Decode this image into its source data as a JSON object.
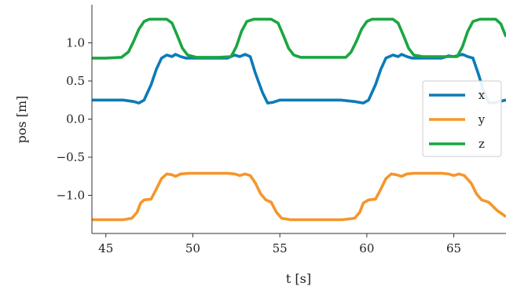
{
  "chart_data": {
    "type": "line",
    "title": "",
    "xlabel": "t [s]",
    "ylabel": "pos [m]",
    "xlim": [
      44.2,
      68.0
    ],
    "ylim": [
      -1.5,
      1.5
    ],
    "x_ticks": [
      45,
      50,
      55,
      60,
      65
    ],
    "x_tick_labels": [
      "45",
      "50",
      "55",
      "60",
      "65"
    ],
    "y_ticks": [
      -1.0,
      -0.5,
      0.0,
      0.5,
      1.0
    ],
    "y_tick_labels": [
      "−1.0",
      "−0.5",
      "0.0",
      "0.5",
      "1.0"
    ],
    "grid": false,
    "legend_position": "right",
    "series": [
      {
        "name": "x",
        "color": "#0c7bb8",
        "points": [
          [
            44.2,
            0.25
          ],
          [
            45.0,
            0.25
          ],
          [
            46.0,
            0.25
          ],
          [
            46.6,
            0.23
          ],
          [
            46.9,
            0.21
          ],
          [
            47.2,
            0.25
          ],
          [
            47.6,
            0.45
          ],
          [
            47.9,
            0.65
          ],
          [
            48.2,
            0.8
          ],
          [
            48.5,
            0.84
          ],
          [
            48.8,
            0.82
          ],
          [
            49.0,
            0.85
          ],
          [
            49.3,
            0.82
          ],
          [
            49.6,
            0.8
          ],
          [
            50.0,
            0.8
          ],
          [
            51.0,
            0.8
          ],
          [
            52.0,
            0.8
          ],
          [
            52.4,
            0.84
          ],
          [
            52.7,
            0.82
          ],
          [
            53.0,
            0.85
          ],
          [
            53.3,
            0.82
          ],
          [
            53.6,
            0.6
          ],
          [
            54.0,
            0.35
          ],
          [
            54.3,
            0.21
          ],
          [
            54.6,
            0.22
          ],
          [
            55.0,
            0.25
          ],
          [
            56.0,
            0.25
          ],
          [
            57.0,
            0.25
          ],
          [
            58.5,
            0.25
          ],
          [
            59.3,
            0.23
          ],
          [
            59.8,
            0.21
          ],
          [
            60.1,
            0.25
          ],
          [
            60.5,
            0.45
          ],
          [
            60.8,
            0.65
          ],
          [
            61.1,
            0.8
          ],
          [
            61.5,
            0.84
          ],
          [
            61.8,
            0.82
          ],
          [
            62.0,
            0.85
          ],
          [
            62.3,
            0.82
          ],
          [
            62.6,
            0.8
          ],
          [
            63.5,
            0.8
          ],
          [
            64.3,
            0.8
          ],
          [
            64.7,
            0.83
          ],
          [
            65.0,
            0.82
          ],
          [
            65.5,
            0.85
          ],
          [
            65.8,
            0.82
          ],
          [
            66.1,
            0.8
          ],
          [
            66.4,
            0.6
          ],
          [
            66.7,
            0.38
          ],
          [
            67.0,
            0.22
          ],
          [
            67.3,
            0.21
          ],
          [
            67.6,
            0.23
          ],
          [
            68.0,
            0.25
          ]
        ]
      },
      {
        "name": "y",
        "color": "#f5962a",
        "points": [
          [
            44.2,
            -1.32
          ],
          [
            45.0,
            -1.32
          ],
          [
            46.0,
            -1.32
          ],
          [
            46.5,
            -1.3
          ],
          [
            46.8,
            -1.22
          ],
          [
            47.0,
            -1.1
          ],
          [
            47.2,
            -1.06
          ],
          [
            47.6,
            -1.05
          ],
          [
            47.9,
            -0.92
          ],
          [
            48.2,
            -0.78
          ],
          [
            48.5,
            -0.72
          ],
          [
            48.8,
            -0.73
          ],
          [
            49.0,
            -0.75
          ],
          [
            49.3,
            -0.72
          ],
          [
            49.8,
            -0.71
          ],
          [
            51.0,
            -0.71
          ],
          [
            52.0,
            -0.71
          ],
          [
            52.4,
            -0.72
          ],
          [
            52.7,
            -0.74
          ],
          [
            53.0,
            -0.72
          ],
          [
            53.3,
            -0.74
          ],
          [
            53.6,
            -0.84
          ],
          [
            53.9,
            -0.98
          ],
          [
            54.2,
            -1.06
          ],
          [
            54.5,
            -1.09
          ],
          [
            54.8,
            -1.22
          ],
          [
            55.1,
            -1.3
          ],
          [
            55.6,
            -1.32
          ],
          [
            57.0,
            -1.32
          ],
          [
            58.6,
            -1.32
          ],
          [
            59.3,
            -1.3
          ],
          [
            59.6,
            -1.22
          ],
          [
            59.8,
            -1.1
          ],
          [
            60.1,
            -1.06
          ],
          [
            60.5,
            -1.05
          ],
          [
            60.8,
            -0.92
          ],
          [
            61.1,
            -0.78
          ],
          [
            61.4,
            -0.72
          ],
          [
            61.7,
            -0.73
          ],
          [
            62.0,
            -0.75
          ],
          [
            62.3,
            -0.72
          ],
          [
            62.7,
            -0.71
          ],
          [
            64.3,
            -0.71
          ],
          [
            64.7,
            -0.72
          ],
          [
            65.0,
            -0.74
          ],
          [
            65.3,
            -0.72
          ],
          [
            65.6,
            -0.74
          ],
          [
            66.0,
            -0.84
          ],
          [
            66.3,
            -0.98
          ],
          [
            66.6,
            -1.06
          ],
          [
            67.0,
            -1.09
          ],
          [
            67.5,
            -1.2
          ],
          [
            68.0,
            -1.28
          ]
        ]
      },
      {
        "name": "z",
        "color": "#1aa640",
        "points": [
          [
            44.2,
            0.8
          ],
          [
            45.0,
            0.8
          ],
          [
            45.9,
            0.81
          ],
          [
            46.3,
            0.88
          ],
          [
            46.6,
            1.02
          ],
          [
            46.9,
            1.18
          ],
          [
            47.2,
            1.28
          ],
          [
            47.5,
            1.31
          ],
          [
            48.0,
            1.31
          ],
          [
            48.5,
            1.31
          ],
          [
            48.8,
            1.26
          ],
          [
            49.1,
            1.1
          ],
          [
            49.4,
            0.93
          ],
          [
            49.7,
            0.84
          ],
          [
            50.2,
            0.81
          ],
          [
            51.5,
            0.81
          ],
          [
            52.2,
            0.82
          ],
          [
            52.5,
            0.95
          ],
          [
            52.8,
            1.15
          ],
          [
            53.1,
            1.28
          ],
          [
            53.5,
            1.31
          ],
          [
            54.5,
            1.31
          ],
          [
            54.9,
            1.26
          ],
          [
            55.2,
            1.1
          ],
          [
            55.5,
            0.93
          ],
          [
            55.8,
            0.84
          ],
          [
            56.2,
            0.81
          ],
          [
            57.5,
            0.81
          ],
          [
            58.8,
            0.81
          ],
          [
            59.1,
            0.88
          ],
          [
            59.4,
            1.02
          ],
          [
            59.7,
            1.18
          ],
          [
            60.0,
            1.28
          ],
          [
            60.3,
            1.31
          ],
          [
            61.0,
            1.31
          ],
          [
            61.5,
            1.31
          ],
          [
            61.8,
            1.26
          ],
          [
            62.1,
            1.1
          ],
          [
            62.4,
            0.93
          ],
          [
            62.7,
            0.84
          ],
          [
            63.2,
            0.82
          ],
          [
            64.5,
            0.82
          ],
          [
            65.2,
            0.82
          ],
          [
            65.5,
            0.95
          ],
          [
            65.8,
            1.15
          ],
          [
            66.1,
            1.28
          ],
          [
            66.5,
            1.31
          ],
          [
            67.4,
            1.31
          ],
          [
            67.7,
            1.25
          ],
          [
            68.0,
            1.08
          ]
        ]
      }
    ]
  }
}
